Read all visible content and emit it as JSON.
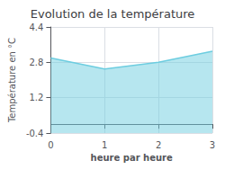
{
  "chart_data": {
    "type": "area",
    "title": "Evolution de la température",
    "xlabel": "heure par heure",
    "ylabel": "Température en °C",
    "x": [
      0,
      1,
      2,
      3
    ],
    "values": [
      3.0,
      2.5,
      2.8,
      3.3
    ],
    "xlim": [
      0,
      3
    ],
    "xticks": [
      0,
      1,
      2,
      3
    ],
    "ylim": [
      -0.4,
      4.4
    ],
    "yticks": [
      -0.4,
      1.2,
      2.8,
      4.4
    ],
    "color": "#6dcde0",
    "grid": true
  }
}
